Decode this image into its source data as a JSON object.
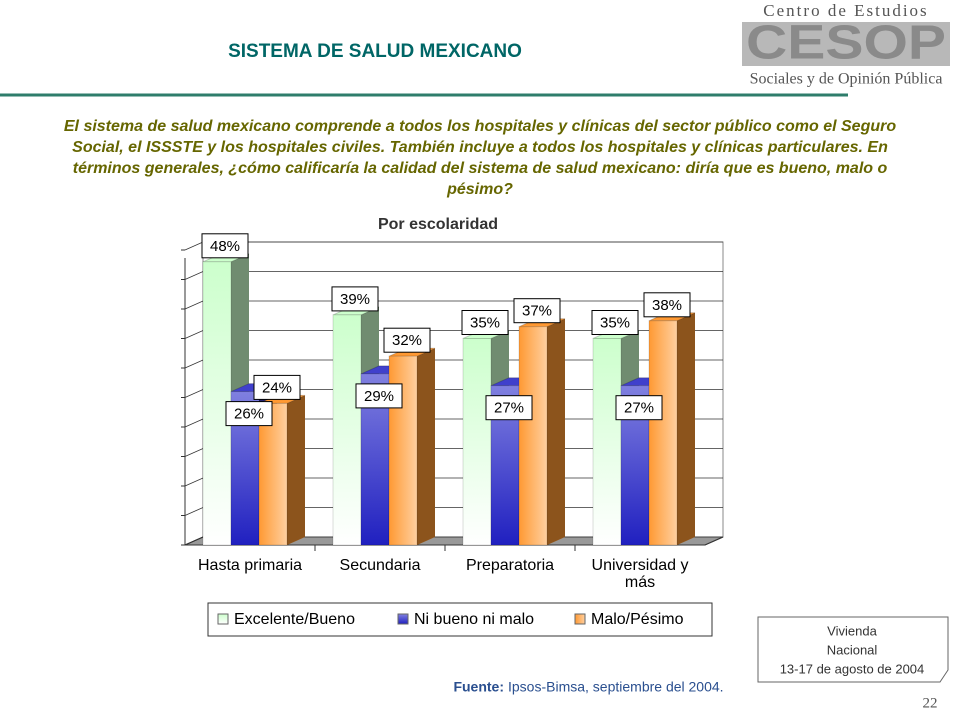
{
  "header": {
    "title": "SISTEMA DE SALUD MEXICANO",
    "logo_top": "Centro de Estudios",
    "logo_mark": "CESOP",
    "logo_bottom": "Sociales y de Opinión Pública"
  },
  "question": "El sistema de salud mexicano comprende a todos los hospitales y clínicas del sector público como el Seguro Social, el ISSSTE y los hospitales civiles. También incluye a todos los hospitales y clínicas particulares. En términos generales, ¿cómo calificaría la calidad del sistema de salud mexicano: diría que es bueno, malo o pésimo?",
  "chart_data": {
    "type": "bar",
    "title": "Por escolaridad",
    "categories": [
      "Hasta primaria",
      "Secundaria",
      "Preparatoria",
      "Universidad y más"
    ],
    "series": [
      {
        "name": "Excelente/Bueno",
        "color": "#ccffcc",
        "values": [
          48,
          39,
          35,
          35
        ],
        "value_labels": [
          "48%",
          "39%",
          "35%",
          "35%"
        ]
      },
      {
        "name": "Ni bueno ni malo",
        "color": "#4040cc",
        "values": [
          26,
          29,
          27,
          27
        ],
        "value_labels": [
          "26%",
          "29%",
          "27%",
          "27%"
        ]
      },
      {
        "name": "Malo/Pésimo",
        "color": "#ff9933",
        "values": [
          24,
          32,
          37,
          38
        ],
        "value_labels": [
          "24%",
          "32%",
          "37%",
          "38%"
        ]
      }
    ],
    "ylim": [
      0,
      50
    ],
    "yticks": [
      0,
      5,
      10,
      15,
      20,
      25,
      30,
      35,
      40,
      45,
      50
    ],
    "grid": true
  },
  "source": {
    "label": "Fuente:",
    "text": "Ipsos-Bimsa, septiembre del 2004."
  },
  "survey_note": [
    "Vivienda",
    "Nacional",
    "13-17 de agosto de 2004"
  ],
  "page_number": "22"
}
